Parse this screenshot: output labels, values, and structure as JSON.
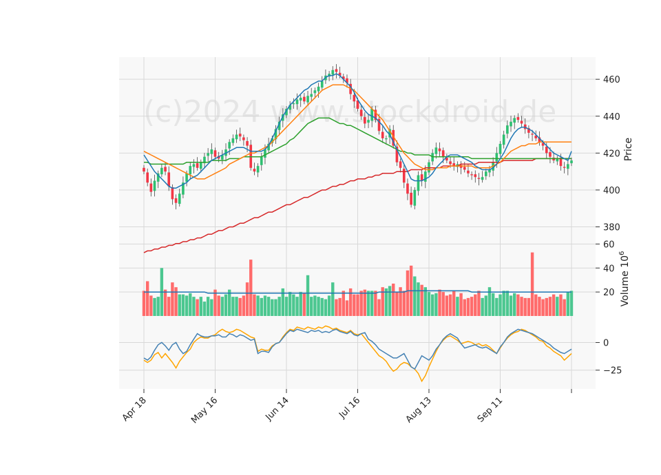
{
  "watermark": "(c)2024 www.stockdroid.de",
  "colors": {
    "up": "#2fbf71",
    "down": "#f23645",
    "vol_up": "#4cc790",
    "vol_down": "#ff6b6b",
    "ma_blue": "#1f77b4",
    "ma_orange": "#ff7f0e",
    "ma_green": "#2ca02c",
    "ma_red": "#d62728",
    "osc_blue": "#4682b4",
    "osc_orange": "#ffa500",
    "panel_bg": "#f8f8f8",
    "grid": "#d8d8d8"
  },
  "chart_data": [
    {
      "type": "candlestick",
      "ylabel": "Price",
      "ylim": [
        372,
        472
      ],
      "yticks": [
        380,
        400,
        420,
        440,
        460
      ],
      "x_tick_labels": [
        "Apr 18",
        "May 16",
        "Jun 14",
        "Jul 16",
        "Aug 13",
        "Sep 11",
        ""
      ],
      "x_tick_index": [
        0,
        20,
        40,
        60,
        80,
        100,
        120
      ],
      "ohlc_close": [
        410,
        404,
        399,
        405,
        409,
        412,
        410,
        402,
        395,
        393,
        398,
        404,
        409,
        413,
        414,
        412,
        415,
        418,
        420,
        422,
        418,
        417,
        419,
        422,
        426,
        428,
        430,
        429,
        427,
        424,
        412,
        410,
        413,
        418,
        422,
        425,
        428,
        433,
        437,
        441,
        444,
        446,
        447,
        449,
        450,
        448,
        451,
        452,
        454,
        456,
        459,
        462,
        463,
        465,
        464,
        462,
        460,
        458,
        452,
        448,
        444,
        440,
        436,
        438,
        444,
        438,
        432,
        428,
        428,
        433,
        424,
        415,
        412,
        404,
        398,
        392,
        400,
        408,
        405,
        410,
        415,
        420,
        423,
        421,
        418,
        416,
        414,
        413,
        414,
        412,
        411,
        409,
        408,
        407,
        406,
        407,
        410,
        411,
        415,
        420,
        425,
        430,
        435,
        437,
        439,
        438,
        436,
        433,
        431,
        430,
        428,
        426,
        424,
        420,
        418,
        416,
        417,
        413,
        412,
        414,
        416
      ],
      "ma_blue": [
        419,
        416,
        413,
        410,
        408,
        406,
        404,
        402,
        401,
        401,
        402,
        403,
        404,
        406,
        407,
        408,
        410,
        412,
        414,
        416,
        417,
        418,
        419,
        420,
        421,
        422,
        423,
        423,
        423,
        422,
        421,
        421,
        421,
        421,
        422,
        424,
        428,
        432,
        436,
        440,
        443,
        446,
        448,
        450,
        452,
        454,
        455,
        457,
        458,
        459,
        459,
        461,
        462,
        462,
        463,
        462,
        460,
        458,
        456,
        453,
        449,
        446,
        443,
        441,
        440,
        439,
        437,
        435,
        432,
        430,
        426,
        422,
        418,
        414,
        410,
        406,
        405,
        405,
        405,
        406,
        407,
        409,
        412,
        414,
        416,
        418,
        419,
        419,
        419,
        418,
        417,
        416,
        415,
        413,
        412,
        411,
        411,
        411,
        412,
        414,
        417,
        420,
        424,
        428,
        431,
        433,
        434,
        434,
        433,
        432,
        430,
        428,
        426,
        424,
        422,
        420,
        419,
        418,
        417,
        416,
        421
      ],
      "ma_orange": [
        421,
        420,
        419,
        418,
        417,
        416,
        415,
        414,
        413,
        412,
        411,
        410,
        409,
        408,
        407,
        406,
        406,
        406,
        407,
        408,
        409,
        410,
        411,
        412,
        414,
        415,
        416,
        417,
        418,
        419,
        420,
        420,
        421,
        422,
        423,
        424,
        426,
        428,
        430,
        432,
        434,
        436,
        438,
        440,
        442,
        444,
        446,
        448,
        450,
        452,
        454,
        455,
        456,
        457,
        457,
        457,
        457,
        456,
        455,
        454,
        452,
        450,
        448,
        446,
        444,
        442,
        440,
        438,
        435,
        432,
        429,
        426,
        423,
        420,
        418,
        416,
        414,
        413,
        412,
        411,
        411,
        411,
        412,
        412,
        412,
        412,
        413,
        413,
        413,
        413,
        413,
        413,
        413,
        412,
        412,
        412,
        412,
        412,
        413,
        414,
        415,
        417,
        419,
        421,
        422,
        423,
        424,
        424,
        425,
        425,
        425,
        426,
        426,
        426,
        426,
        426,
        426,
        426,
        426,
        426,
        426
      ],
      "ma_green": [
        415,
        415,
        414,
        414,
        414,
        414,
        414,
        414,
        414,
        414,
        414,
        414,
        415,
        415,
        415,
        415,
        415,
        415,
        415,
        416,
        416,
        416,
        416,
        416,
        417,
        417,
        417,
        417,
        418,
        418,
        418,
        418,
        418,
        418,
        419,
        420,
        421,
        422,
        423,
        424,
        425,
        427,
        428,
        430,
        432,
        434,
        436,
        437,
        438,
        439,
        439,
        439,
        439,
        438,
        437,
        436,
        436,
        435,
        435,
        434,
        433,
        432,
        431,
        430,
        429,
        428,
        427,
        426,
        425,
        424,
        423,
        422,
        421,
        421,
        420,
        420,
        419,
        419,
        419,
        419,
        419,
        418,
        418,
        418,
        418,
        418,
        418,
        418,
        418,
        418,
        418,
        418,
        417,
        417,
        417,
        417,
        417,
        417,
        417,
        417,
        417,
        417,
        417,
        417,
        417,
        417,
        417,
        417,
        417,
        417,
        417,
        417,
        417,
        417,
        417,
        417,
        417,
        417,
        417,
        417,
        417
      ],
      "ma_red": [
        366,
        367,
        367,
        368,
        368,
        369,
        369,
        370,
        370,
        371,
        371,
        372,
        372,
        373,
        373,
        374,
        374,
        375,
        376,
        376,
        377,
        378,
        378,
        379,
        380,
        380,
        381,
        382,
        382,
        383,
        384,
        385,
        385,
        386,
        387,
        388,
        388,
        389,
        390,
        391,
        392,
        392,
        393,
        394,
        395,
        396,
        396,
        397,
        398,
        399,
        400,
        400,
        401,
        402,
        402,
        403,
        403,
        404,
        405,
        405,
        406,
        406,
        406,
        407,
        407,
        408,
        408,
        409,
        409,
        409,
        409,
        410,
        410,
        410,
        410,
        411,
        411,
        411,
        411,
        412,
        412,
        412,
        412,
        412,
        413,
        413,
        413,
        413,
        413,
        414,
        414,
        414,
        414,
        414,
        415,
        415,
        415,
        415,
        415,
        415,
        415,
        416,
        416,
        416,
        416,
        416,
        416,
        416,
        416,
        416,
        417,
        417,
        417,
        417,
        417,
        417,
        417,
        417,
        417,
        417,
        417
      ]
    },
    {
      "type": "bar",
      "ylabel": "Volume  10^6",
      "ylim": [
        0,
        62
      ],
      "yticks": [
        20,
        40,
        60
      ],
      "values": [
        21,
        29,
        17,
        15,
        16,
        40,
        22,
        16,
        28,
        24,
        18,
        18,
        17,
        19,
        16,
        14,
        16,
        12,
        16,
        14,
        22,
        17,
        16,
        18,
        22,
        16,
        16,
        15,
        17,
        28,
        47,
        18,
        17,
        15,
        17,
        16,
        14,
        14,
        16,
        23,
        16,
        20,
        18,
        16,
        20,
        19,
        34,
        16,
        17,
        16,
        15,
        14,
        17,
        28,
        14,
        15,
        21,
        13,
        23,
        18,
        18,
        21,
        22,
        21,
        21,
        21,
        14,
        24,
        23,
        25,
        27,
        20,
        24,
        21,
        38,
        42,
        33,
        28,
        26,
        24,
        20,
        18,
        19,
        22,
        20,
        17,
        18,
        21,
        16,
        19,
        14,
        15,
        16,
        18,
        21,
        15,
        17,
        24,
        19,
        15,
        18,
        21,
        21,
        17,
        19,
        18,
        16,
        15,
        15,
        53,
        18,
        16,
        14,
        15,
        16,
        18,
        16,
        18,
        14,
        20,
        21
      ],
      "ma_values": [
        20,
        20,
        20,
        20,
        20,
        20,
        20,
        20,
        20,
        20,
        20,
        20,
        20,
        20,
        20,
        20,
        20,
        20,
        19,
        19,
        19,
        19,
        19,
        19,
        19,
        19,
        19,
        19,
        19,
        19,
        19,
        19,
        19,
        19,
        19,
        19,
        19,
        19,
        19,
        19,
        19,
        19,
        19,
        19,
        19,
        19,
        19,
        19,
        19,
        19,
        19,
        19,
        19,
        19,
        19,
        19,
        19,
        19,
        19,
        19,
        19,
        19,
        19,
        19,
        19,
        19,
        20,
        20,
        20,
        20,
        20,
        20,
        20,
        20,
        21,
        21,
        21,
        21,
        21,
        21,
        21,
        21,
        21,
        21,
        21,
        21,
        21,
        21,
        21,
        21,
        21,
        21,
        20,
        20,
        20,
        20,
        20,
        20,
        20,
        20,
        20,
        20,
        20,
        20,
        20,
        20,
        20,
        20,
        20,
        20,
        20,
        20,
        20,
        20,
        20,
        20,
        20,
        20,
        20,
        20,
        20
      ]
    },
    {
      "type": "line",
      "ylim": [
        -42,
        24
      ],
      "yticks": [
        -25,
        0
      ],
      "series_blue": [
        -14,
        -16,
        -13,
        -7,
        -2,
        0,
        -3,
        -7,
        -2,
        0,
        -6,
        -10,
        -8,
        -2,
        3,
        8,
        6,
        5,
        5,
        6,
        6,
        7,
        5,
        5,
        8,
        7,
        5,
        7,
        6,
        4,
        2,
        3,
        -10,
        -8,
        -8,
        -9,
        -4,
        -1,
        0,
        4,
        8,
        11,
        10,
        12,
        11,
        10,
        9,
        11,
        10,
        11,
        9,
        10,
        9,
        11,
        12,
        10,
        9,
        8,
        10,
        7,
        6,
        8,
        9,
        3,
        1,
        -2,
        -6,
        -8,
        -10,
        -12,
        -14,
        -14,
        -12,
        -10,
        -16,
        -22,
        -24,
        -18,
        -12,
        -14,
        -16,
        -12,
        -6,
        -2,
        3,
        6,
        8,
        6,
        4,
        -1,
        -5,
        -4,
        -3,
        -2,
        -4,
        -5,
        -4,
        -6,
        -8,
        -10,
        -4,
        0,
        5,
        8,
        10,
        12,
        11,
        10,
        9,
        8,
        6,
        4,
        2,
        0,
        -2,
        -5,
        -7,
        -9,
        -10,
        -8,
        -6
      ],
      "series_orange": [
        -16,
        -18,
        -16,
        -11,
        -9,
        -14,
        -10,
        -14,
        -18,
        -23,
        -17,
        -13,
        -9,
        -6,
        0,
        3,
        5,
        4,
        4,
        6,
        7,
        10,
        12,
        10,
        9,
        10,
        12,
        11,
        9,
        7,
        5,
        4,
        -8,
        -6,
        -7,
        -7,
        -3,
        -1,
        0,
        5,
        9,
        12,
        11,
        14,
        13,
        12,
        14,
        13,
        12,
        14,
        13,
        15,
        14,
        12,
        13,
        11,
        10,
        9,
        11,
        8,
        7,
        8,
        4,
        0,
        -4,
        -8,
        -12,
        -14,
        -17,
        -22,
        -26,
        -24,
        -20,
        -18,
        -19,
        -22,
        -24,
        -28,
        -35,
        -30,
        -22,
        -15,
        -8,
        -2,
        2,
        5,
        6,
        4,
        2,
        -1,
        0,
        1,
        0,
        -2,
        -1,
        -3,
        -2,
        -4,
        -7,
        -10,
        -5,
        0,
        4,
        7,
        9,
        10,
        12,
        11,
        9,
        7,
        5,
        2,
        1,
        -3,
        -5,
        -8,
        -10,
        -12,
        -16,
        -13,
        -10
      ],
      "x_len": 121
    }
  ]
}
